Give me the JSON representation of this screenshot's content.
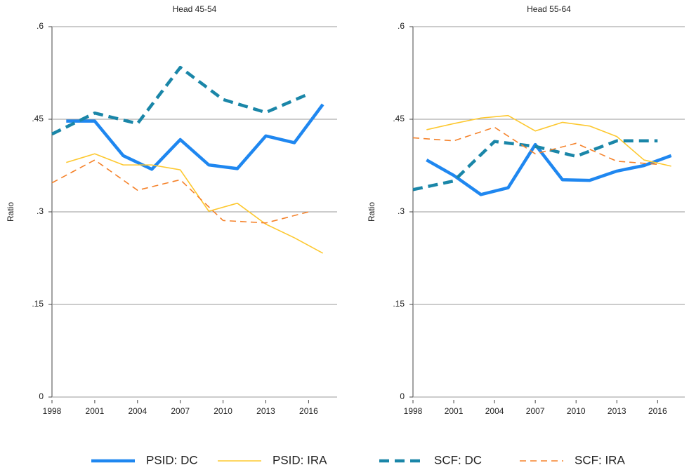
{
  "chart_data": [
    {
      "type": "line",
      "title": "Head 45-54",
      "ylabel": "Ratio",
      "xlim": [
        1998,
        2018
      ],
      "xticks": [
        1998,
        2001,
        2004,
        2007,
        2010,
        2013,
        2016
      ],
      "ylim": [
        0,
        0.6
      ],
      "yticks": [
        0,
        {
          "value": 0.15,
          "label": ".15"
        },
        {
          "value": 0.3,
          "label": ".3"
        },
        {
          "value": 0.45,
          "label": ".45"
        },
        {
          "value": 0.6,
          "label": ".6"
        }
      ],
      "grid": true,
      "series": [
        {
          "name": "PSID: DC",
          "color": "#1f87f0",
          "dashed": false,
          "thick": true,
          "x": [
            1999,
            2001,
            2003,
            2005,
            2007,
            2009,
            2011,
            2013,
            2015,
            2017
          ],
          "values": [
            0.447,
            0.447,
            0.391,
            0.369,
            0.417,
            0.376,
            0.37,
            0.423,
            0.412,
            0.474
          ]
        },
        {
          "name": "PSID: IRA",
          "color": "#fdc82f",
          "dashed": false,
          "thick": false,
          "x": [
            1999,
            2001,
            2003,
            2005,
            2007,
            2009,
            2011,
            2013,
            2015,
            2017
          ],
          "values": [
            0.38,
            0.394,
            0.376,
            0.376,
            0.368,
            0.301,
            0.314,
            0.28,
            0.258,
            0.233
          ]
        },
        {
          "name": "SCF: DC",
          "color": "#1a86a8",
          "dashed": true,
          "thick": true,
          "x": [
            1998,
            2001,
            2004,
            2007,
            2010,
            2013,
            2016
          ],
          "values": [
            0.426,
            0.46,
            0.443,
            0.534,
            0.482,
            0.461,
            0.491
          ]
        },
        {
          "name": "SCF: IRA",
          "color": "#f5822a",
          "dashed": true,
          "thick": false,
          "x": [
            1998,
            2001,
            2004,
            2007,
            2010,
            2013,
            2016
          ],
          "values": [
            0.347,
            0.384,
            0.335,
            0.352,
            0.286,
            0.282,
            0.3
          ]
        }
      ]
    },
    {
      "type": "line",
      "title": "Head 55-64",
      "ylabel": "Ratio",
      "xlim": [
        1998,
        2018
      ],
      "xticks": [
        1998,
        2001,
        2004,
        2007,
        2010,
        2013,
        2016
      ],
      "ylim": [
        0,
        0.6
      ],
      "yticks": [
        0,
        {
          "value": 0.15,
          "label": ".15"
        },
        {
          "value": 0.3,
          "label": ".3"
        },
        {
          "value": 0.45,
          "label": ".45"
        },
        {
          "value": 0.6,
          "label": ".6"
        }
      ],
      "grid": true,
      "series": [
        {
          "color": "#1f87f0",
          "dashed": false,
          "thick": true,
          "x": [
            1999,
            2001,
            2003,
            2005,
            2007,
            2009,
            2011,
            2013,
            2015,
            2017
          ],
          "values": [
            0.384,
            0.359,
            0.328,
            0.339,
            0.409,
            0.352,
            0.351,
            0.366,
            0.375,
            0.391
          ]
        },
        {
          "color": "#fdc82f",
          "dashed": false,
          "thick": false,
          "x": [
            1999,
            2001,
            2003,
            2005,
            2007,
            2009,
            2011,
            2013,
            2015,
            2017
          ],
          "values": [
            0.433,
            0.443,
            0.452,
            0.456,
            0.431,
            0.445,
            0.439,
            0.422,
            0.384,
            0.374
          ]
        },
        {
          "color": "#1a86a8",
          "dashed": true,
          "thick": true,
          "x": [
            1998,
            2001,
            2004,
            2007,
            2010,
            2013,
            2016
          ],
          "values": [
            0.336,
            0.35,
            0.414,
            0.406,
            0.39,
            0.415,
            0.415
          ]
        },
        {
          "color": "#f5822a",
          "dashed": true,
          "thick": false,
          "x": [
            1998,
            2001,
            2004,
            2007,
            2010,
            2013,
            2016
          ],
          "values": [
            0.42,
            0.415,
            0.437,
            0.394,
            0.411,
            0.382,
            0.377
          ]
        }
      ]
    }
  ]
}
